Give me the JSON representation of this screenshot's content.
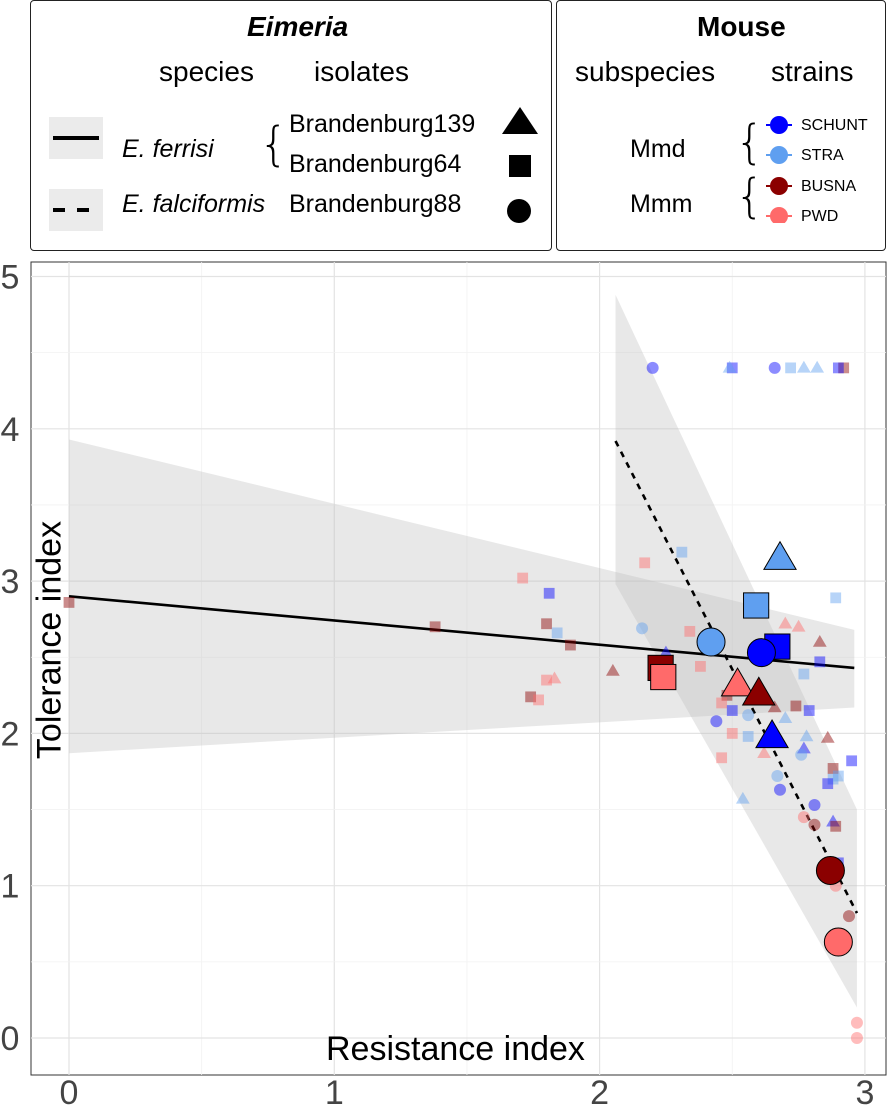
{
  "legend_eimeria": {
    "title": "Eimeria",
    "col_species": "species",
    "col_isolates": "isolates",
    "species": [
      {
        "name": "E. ferrisi",
        "line": "solid"
      },
      {
        "name": "E. falciformis",
        "line": "dashed"
      }
    ],
    "isolates": [
      {
        "name": "Brandenburg139",
        "shape": "triangle"
      },
      {
        "name": "Brandenburg64",
        "shape": "square"
      },
      {
        "name": "Brandenburg88",
        "shape": "circle"
      }
    ]
  },
  "legend_mouse": {
    "title": "Mouse",
    "col_subspecies": "subspecies",
    "col_strains": "strains",
    "subspecies": [
      "Mmd",
      "Mmm"
    ],
    "strains": [
      {
        "name": "SCHUNT",
        "color": "#0000ff"
      },
      {
        "name": "STRA",
        "color": "#5f9ff0"
      },
      {
        "name": "BUSNA",
        "color": "#8b0000"
      },
      {
        "name": "PWD",
        "color": "#ff6a6a"
      }
    ]
  },
  "chart_data": {
    "type": "scatter",
    "xlabel": "Resistance index",
    "ylabel": "Tolerance index",
    "xlim": [
      -0.15,
      3.08
    ],
    "ylim": [
      -0.25,
      5.1
    ],
    "xticks": [
      "0",
      "1",
      "2",
      "3"
    ],
    "yticks": [
      "0",
      "1",
      "2",
      "3",
      "4",
      "5"
    ],
    "grid": true,
    "regression_lines": [
      {
        "species": "E. ferrisi",
        "style": "solid",
        "x": [
          0,
          2.96
        ],
        "y": [
          2.9,
          2.43
        ],
        "band": {
          "x": [
            0,
            2.96
          ],
          "upper": [
            3.93,
            2.68
          ],
          "lower": [
            1.87,
            2.17
          ]
        }
      },
      {
        "species": "E. falciformis",
        "style": "dashed",
        "x": [
          2.06,
          2.97
        ],
        "y": [
          3.92,
          0.82
        ],
        "band": {
          "x": [
            2.06,
            2.97
          ],
          "upper": [
            4.88,
            1.5
          ],
          "lower": [
            2.98,
            0.2
          ]
        }
      }
    ],
    "mean_points": [
      {
        "isolate": "Brandenburg139",
        "strain": "STRA",
        "x": 2.68,
        "y": 3.15
      },
      {
        "isolate": "Brandenburg64",
        "strain": "STRA",
        "x": 2.59,
        "y": 2.84
      },
      {
        "isolate": "Brandenburg64",
        "strain": "SCHUNT",
        "x": 2.67,
        "y": 2.57
      },
      {
        "isolate": "Brandenburg88",
        "strain": "STRA",
        "x": 2.42,
        "y": 2.6
      },
      {
        "isolate": "Brandenburg88",
        "strain": "SCHUNT",
        "x": 2.61,
        "y": 2.53
      },
      {
        "isolate": "Brandenburg64",
        "strain": "BUSNA",
        "x": 2.23,
        "y": 2.43
      },
      {
        "isolate": "Brandenburg64",
        "strain": "PWD",
        "x": 2.24,
        "y": 2.37
      },
      {
        "isolate": "Brandenburg139",
        "strain": "PWD",
        "x": 2.52,
        "y": 2.32
      },
      {
        "isolate": "Brandenburg139",
        "strain": "BUSNA",
        "x": 2.6,
        "y": 2.26
      },
      {
        "isolate": "Brandenburg139",
        "strain": "SCHUNT",
        "x": 2.65,
        "y": 1.98
      },
      {
        "isolate": "Brandenburg88",
        "strain": "BUSNA",
        "x": 2.87,
        "y": 1.1
      },
      {
        "isolate": "Brandenburg88",
        "strain": "PWD",
        "x": 2.9,
        "y": 0.63
      }
    ],
    "individual_points": [
      {
        "isolate": "Brandenburg88",
        "strain": "SCHUNT",
        "x": 2.2,
        "y": 4.4
      },
      {
        "isolate": "Brandenburg64",
        "strain": "SCHUNT",
        "x": 2.5,
        "y": 4.4
      },
      {
        "isolate": "Brandenburg139",
        "strain": "STRA",
        "x": 2.49,
        "y": 4.4
      },
      {
        "isolate": "Brandenburg88",
        "strain": "SCHUNT",
        "x": 2.66,
        "y": 4.4
      },
      {
        "isolate": "Brandenburg64",
        "strain": "STRA",
        "x": 2.72,
        "y": 4.4
      },
      {
        "isolate": "Brandenburg139",
        "strain": "STRA",
        "x": 2.77,
        "y": 4.4
      },
      {
        "isolate": "Brandenburg139",
        "strain": "STRA",
        "x": 2.82,
        "y": 4.4
      },
      {
        "isolate": "Brandenburg64",
        "strain": "BUSNA",
        "x": 2.92,
        "y": 4.4
      },
      {
        "isolate": "Brandenburg64",
        "strain": "SCHUNT",
        "x": 2.9,
        "y": 4.4
      },
      {
        "isolate": "Brandenburg64",
        "strain": "BUSNA",
        "x": 0,
        "y": 2.86
      },
      {
        "isolate": "Brandenburg64",
        "strain": "BUSNA",
        "x": 1.38,
        "y": 2.7
      },
      {
        "isolate": "Brandenburg64",
        "strain": "PWD",
        "x": 1.71,
        "y": 3.02
      },
      {
        "isolate": "Brandenburg64",
        "strain": "SCHUNT",
        "x": 1.81,
        "y": 2.92
      },
      {
        "isolate": "Brandenburg64",
        "strain": "BUSNA",
        "x": 1.8,
        "y": 2.72
      },
      {
        "isolate": "Brandenburg64",
        "strain": "STRA",
        "x": 1.84,
        "y": 2.66
      },
      {
        "isolate": "Brandenburg64",
        "strain": "BUSNA",
        "x": 1.89,
        "y": 2.58
      },
      {
        "isolate": "Brandenburg64",
        "strain": "PWD",
        "x": 2.17,
        "y": 3.12
      },
      {
        "isolate": "Brandenburg64",
        "strain": "STRA",
        "x": 2.31,
        "y": 3.19
      },
      {
        "isolate": "Brandenburg64",
        "strain": "PWD",
        "x": 2.34,
        "y": 2.67
      },
      {
        "isolate": "Brandenburg64",
        "strain": "BUSNA",
        "x": 1.74,
        "y": 2.24
      },
      {
        "isolate": "Brandenburg64",
        "strain": "PWD",
        "x": 1.77,
        "y": 2.22
      },
      {
        "isolate": "Brandenburg64",
        "strain": "PWD",
        "x": 1.8,
        "y": 2.35
      },
      {
        "isolate": "Brandenburg139",
        "strain": "PWD",
        "x": 1.83,
        "y": 2.36
      },
      {
        "isolate": "Brandenburg139",
        "strain": "BUSNA",
        "x": 2.05,
        "y": 2.41
      },
      {
        "isolate": "Brandenburg88",
        "strain": "STRA",
        "x": 2.16,
        "y": 2.69
      },
      {
        "isolate": "Brandenburg88",
        "strain": "STRA",
        "x": 2.25,
        "y": 2.47
      },
      {
        "isolate": "Brandenburg139",
        "strain": "SCHUNT",
        "x": 2.25,
        "y": 2.53
      },
      {
        "isolate": "Brandenburg64",
        "strain": "PWD",
        "x": 2.38,
        "y": 2.44
      },
      {
        "isolate": "Brandenburg64",
        "strain": "BUSNA",
        "x": 2.48,
        "y": 2.25
      },
      {
        "isolate": "Brandenburg64",
        "strain": "PWD",
        "x": 2.46,
        "y": 2.2
      },
      {
        "isolate": "Brandenburg88",
        "strain": "SCHUNT",
        "x": 2.44,
        "y": 2.08
      },
      {
        "isolate": "Brandenburg64",
        "strain": "SCHUNT",
        "x": 2.5,
        "y": 2.15
      },
      {
        "isolate": "Brandenburg64",
        "strain": "PWD",
        "x": 2.5,
        "y": 2.0
      },
      {
        "isolate": "Brandenburg88",
        "strain": "STRA",
        "x": 2.56,
        "y": 2.12
      },
      {
        "isolate": "Brandenburg64",
        "strain": "STRA",
        "x": 2.56,
        "y": 1.98
      },
      {
        "isolate": "Brandenburg88",
        "strain": "STRA",
        "x": 2.57,
        "y": 2.83
      },
      {
        "isolate": "Brandenburg139",
        "strain": "PWD",
        "x": 2.7,
        "y": 2.72
      },
      {
        "isolate": "Brandenburg139",
        "strain": "PWD",
        "x": 2.75,
        "y": 2.7
      },
      {
        "isolate": "Brandenburg139",
        "strain": "BUSNA",
        "x": 2.83,
        "y": 2.6
      },
      {
        "isolate": "Brandenburg64",
        "strain": "STRA",
        "x": 2.77,
        "y": 2.39
      },
      {
        "isolate": "Brandenburg64",
        "strain": "SCHUNT",
        "x": 2.83,
        "y": 2.47
      },
      {
        "isolate": "Brandenburg64",
        "strain": "BUSNA",
        "x": 2.74,
        "y": 2.18
      },
      {
        "isolate": "Brandenburg64",
        "strain": "SCHUNT",
        "x": 2.79,
        "y": 2.15
      },
      {
        "isolate": "Brandenburg139",
        "strain": "BUSNA",
        "x": 2.66,
        "y": 2.17
      },
      {
        "isolate": "Brandenburg139",
        "strain": "STRA",
        "x": 2.7,
        "y": 2.1
      },
      {
        "isolate": "Brandenburg139",
        "strain": "STRA",
        "x": 2.78,
        "y": 1.98
      },
      {
        "isolate": "Brandenburg139",
        "strain": "BUSNA",
        "x": 2.86,
        "y": 1.97
      },
      {
        "isolate": "Brandenburg139",
        "strain": "SCHUNT",
        "x": 2.77,
        "y": 1.9
      },
      {
        "isolate": "Brandenburg88",
        "strain": "STRA",
        "x": 2.76,
        "y": 1.86
      },
      {
        "isolate": "Brandenburg139",
        "strain": "PWD",
        "x": 2.62,
        "y": 1.87
      },
      {
        "isolate": "Brandenburg64",
        "strain": "PWD",
        "x": 2.46,
        "y": 1.84
      },
      {
        "isolate": "Brandenburg64",
        "strain": "SCHUNT",
        "x": 2.95,
        "y": 1.82
      },
      {
        "isolate": "Brandenburg64",
        "strain": "STRA",
        "x": 2.88,
        "y": 1.7
      },
      {
        "isolate": "Brandenburg64",
        "strain": "SCHUNT",
        "x": 2.86,
        "y": 1.67
      },
      {
        "isolate": "Brandenburg64",
        "strain": "BUSNA",
        "x": 2.88,
        "y": 1.77
      },
      {
        "isolate": "Brandenburg64",
        "strain": "STRA",
        "x": 2.9,
        "y": 1.72
      },
      {
        "isolate": "Brandenburg88",
        "strain": "STRA",
        "x": 2.67,
        "y": 1.72
      },
      {
        "isolate": "Brandenburg88",
        "strain": "SCHUNT",
        "x": 2.68,
        "y": 1.63
      },
      {
        "isolate": "Brandenburg139",
        "strain": "STRA",
        "x": 2.54,
        "y": 1.57
      },
      {
        "isolate": "Brandenburg88",
        "strain": "SCHUNT",
        "x": 2.81,
        "y": 1.53
      },
      {
        "isolate": "Brandenburg88",
        "strain": "PWD",
        "x": 2.77,
        "y": 1.45
      },
      {
        "isolate": "Brandenburg88",
        "strain": "BUSNA",
        "x": 2.81,
        "y": 1.4
      },
      {
        "isolate": "Brandenburg139",
        "strain": "SCHUNT",
        "x": 2.88,
        "y": 1.42
      },
      {
        "isolate": "Brandenburg64",
        "strain": "BUSNA",
        "x": 2.89,
        "y": 1.39
      },
      {
        "isolate": "Brandenburg64",
        "strain": "SCHUNT",
        "x": 2.9,
        "y": 1.15
      },
      {
        "isolate": "Brandenburg64",
        "strain": "STRA",
        "x": 2.89,
        "y": 2.89
      },
      {
        "isolate": "Brandenburg88",
        "strain": "PWD",
        "x": 2.89,
        "y": 1.0
      },
      {
        "isolate": "Brandenburg88",
        "strain": "BUSNA",
        "x": 2.94,
        "y": 0.8
      },
      {
        "isolate": "Brandenburg88",
        "strain": "PWD",
        "x": 2.97,
        "y": 0.1
      },
      {
        "isolate": "Brandenburg88",
        "strain": "PWD",
        "x": 2.97,
        "y": 0.0
      }
    ]
  }
}
